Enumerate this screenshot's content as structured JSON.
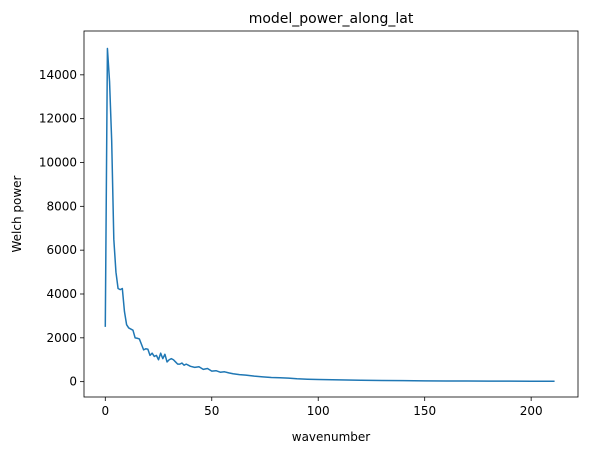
{
  "chart_data": {
    "type": "line",
    "title": "model_power_along_lat",
    "xlabel": "wavenumber",
    "ylabel": "Welch power",
    "xlim": [
      -10,
      222
    ],
    "ylim": [
      -700,
      16000
    ],
    "xticks": [
      0,
      50,
      100,
      150,
      200
    ],
    "yticks": [
      0,
      2000,
      4000,
      6000,
      8000,
      10000,
      12000,
      14000
    ],
    "xtick_labels": [
      "0",
      "50",
      "100",
      "150",
      "200"
    ],
    "ytick_labels": [
      "0",
      "2000",
      "4000",
      "6000",
      "8000",
      "10000",
      "12000",
      "14000"
    ],
    "grid": false,
    "series": [
      {
        "color": "#1f77b4",
        "x": [
          0,
          1,
          2,
          3,
          4,
          5,
          6,
          7,
          8,
          9,
          10,
          11,
          12,
          13,
          14,
          15,
          16,
          17,
          18,
          19,
          20,
          21,
          22,
          23,
          24,
          25,
          26,
          27,
          28,
          29,
          30,
          31,
          32,
          33,
          34,
          35,
          36,
          37,
          38,
          39,
          40,
          42,
          44,
          46,
          48,
          50,
          52,
          54,
          56,
          58,
          60,
          63,
          66,
          70,
          74,
          78,
          82,
          86,
          90,
          95,
          100,
          110,
          120,
          130,
          140,
          150,
          160,
          170,
          180,
          190,
          200,
          211
        ],
        "y": [
          2500,
          15200,
          13700,
          11000,
          6500,
          5000,
          4250,
          4200,
          4250,
          3200,
          2600,
          2450,
          2400,
          2350,
          2000,
          1980,
          1950,
          1700,
          1450,
          1500,
          1480,
          1200,
          1300,
          1150,
          1200,
          1000,
          1300,
          1050,
          1250,
          900,
          1000,
          1050,
          1000,
          900,
          800,
          800,
          850,
          750,
          800,
          750,
          700,
          650,
          680,
          560,
          600,
          480,
          500,
          430,
          450,
          400,
          360,
          320,
          300,
          250,
          220,
          190,
          180,
          160,
          130,
          110,
          100,
          80,
          65,
          55,
          45,
          38,
          32,
          28,
          25,
          22,
          20,
          18
        ]
      }
    ]
  }
}
